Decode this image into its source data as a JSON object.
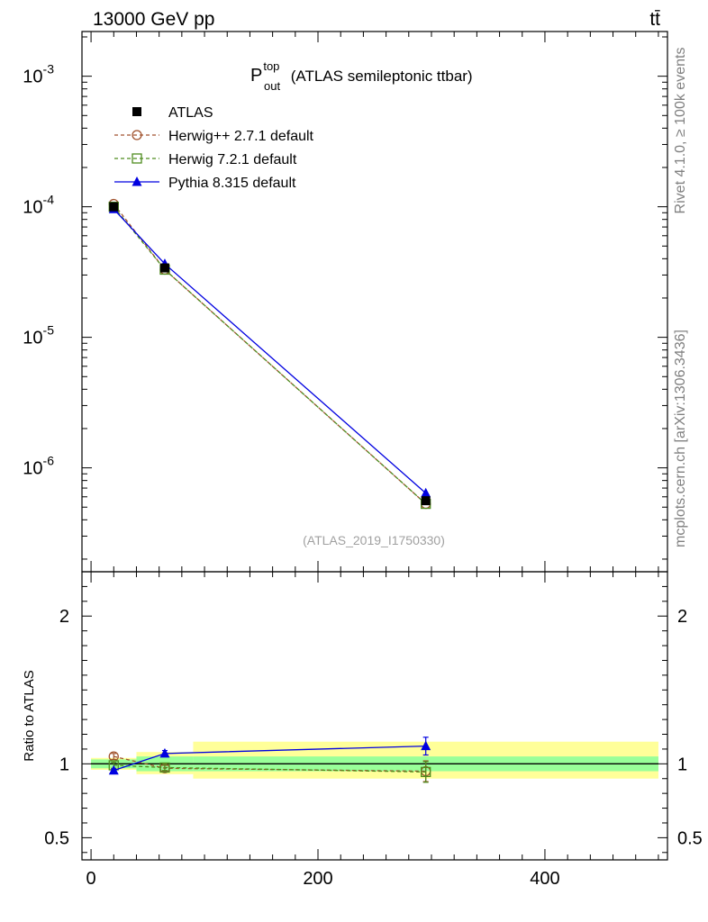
{
  "header": {
    "left": "13000 GeV pp",
    "right": "tt̄"
  },
  "side_labels": {
    "rivet": "Rivet 4.1.0, ≥ 100k events",
    "mcplots": "mcplots.cern.ch [arXiv:1306.3436]"
  },
  "watermark": "(ATLAS_2019_I1750330)",
  "chart_data": {
    "type": "line",
    "title": {
      "main": "P",
      "sup": "top",
      "sub": "out",
      "rest": " (ATLAS semileptonic ttbar)"
    },
    "xlim": [
      -8,
      508
    ],
    "x_ticks": [
      0,
      200,
      400
    ],
    "x_tick_labels": [
      "0",
      "200",
      "400"
    ],
    "main_panel": {
      "yscale": "log",
      "ylim": [
        1.6e-07,
        0.0022
      ],
      "y_ticks": [
        {
          "base": "10",
          "exp": "-6",
          "value": 1e-06
        },
        {
          "base": "10",
          "exp": "-5",
          "value": 1e-05
        },
        {
          "base": "10",
          "exp": "-4",
          "value": 0.0001
        },
        {
          "base": "10",
          "exp": "-3",
          "value": 0.001
        }
      ]
    },
    "ratio_panel": {
      "ylabel": "Ratio to ATLAS",
      "ylim": [
        0.35,
        2.3
      ],
      "y_ticks": [
        0.5,
        1,
        2
      ],
      "y_tick_labels": [
        "0.5",
        "1",
        "2"
      ],
      "bands": [
        {
          "x0": 0,
          "x1": 40,
          "stat": [
            0.97,
            1.03
          ],
          "total": [
            0.96,
            1.04
          ]
        },
        {
          "x0": 40,
          "x1": 90,
          "stat": [
            0.95,
            1.05
          ],
          "total": [
            0.93,
            1.08
          ]
        },
        {
          "x0": 90,
          "x1": 500,
          "stat": [
            0.95,
            1.05
          ],
          "total": [
            0.9,
            1.15
          ]
        }
      ]
    },
    "series": [
      {
        "name": "ATLAS",
        "role": "data",
        "color": "#000000",
        "marker": "square-filled",
        "x": [
          20,
          65,
          295
        ],
        "y": [
          0.0001,
          3.4e-05,
          5.6e-07
        ],
        "ratio": [
          1,
          1,
          1
        ]
      },
      {
        "name": "Herwig++ 2.7.1 default",
        "color": "#a0522d",
        "marker": "circle-open",
        "dash": "4,3",
        "x": [
          20,
          65,
          295
        ],
        "y": [
          0.000105,
          3.3e-05,
          5.3e-07
        ],
        "ratio": [
          1.05,
          0.97,
          0.95
        ],
        "ratio_err": [
          0.02,
          0.02,
          0.07
        ]
      },
      {
        "name": "Herwig 7.2.1 default",
        "color": "#4e8c1e",
        "marker": "square-open",
        "dash": "4,3",
        "x": [
          20,
          65,
          295
        ],
        "y": [
          0.0001,
          3.3e-05,
          5.3e-07
        ],
        "ratio": [
          0.99,
          0.975,
          0.945
        ],
        "ratio_err": [
          0.02,
          0.02,
          0.07
        ]
      },
      {
        "name": "Pythia 8.315 default",
        "color": "#0000e0",
        "marker": "triangle-filled",
        "x": [
          20,
          65,
          295
        ],
        "y": [
          9.6e-05,
          3.65e-05,
          6.4e-07
        ],
        "ratio": [
          0.955,
          1.07,
          1.12
        ],
        "ratio_err": [
          0.01,
          0.02,
          0.06
        ]
      }
    ]
  }
}
